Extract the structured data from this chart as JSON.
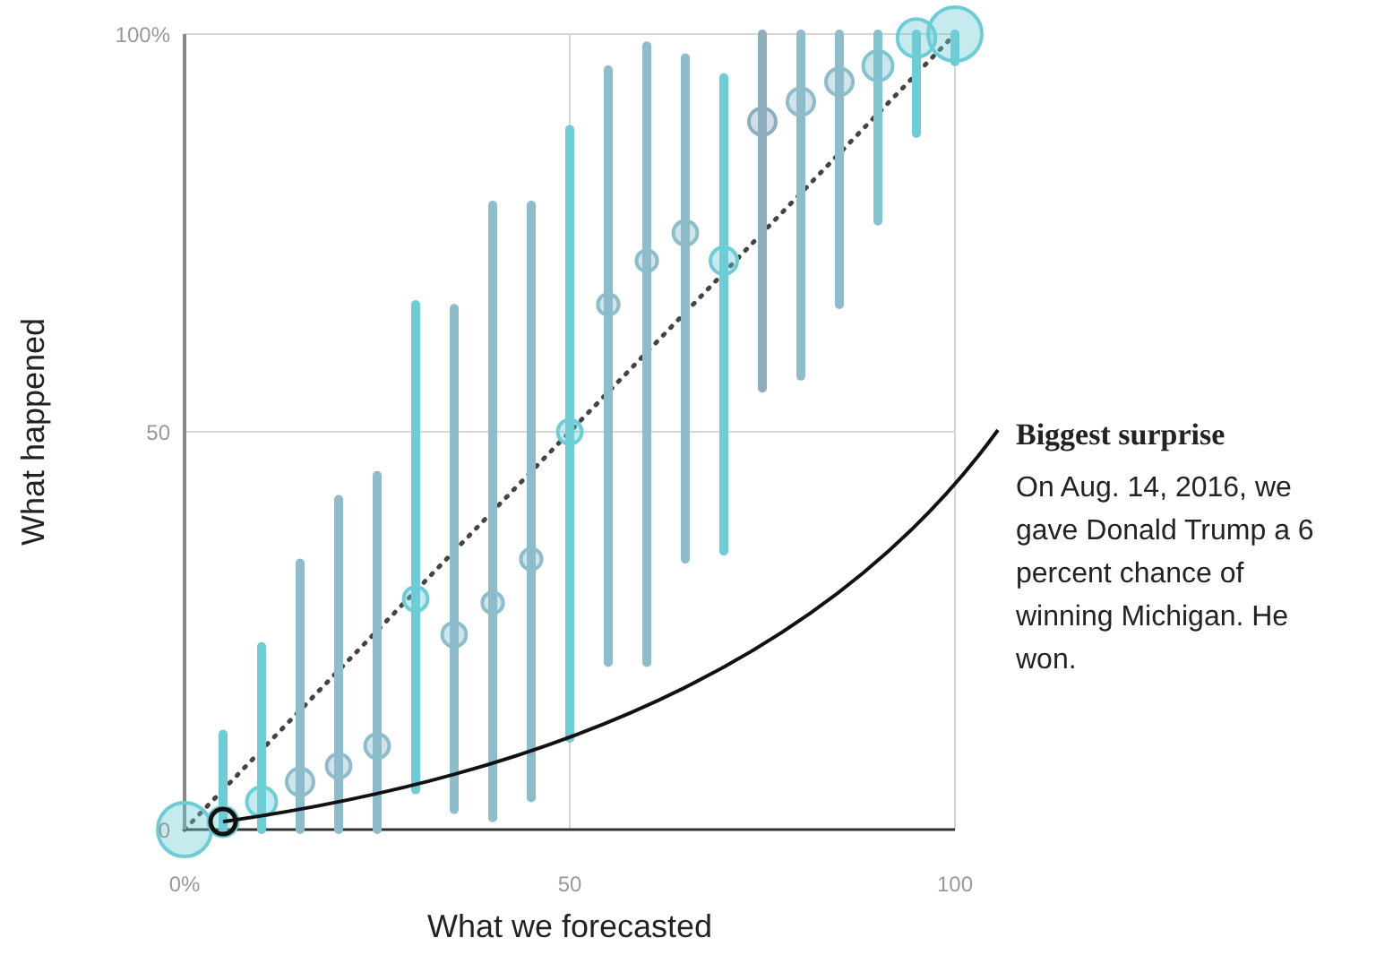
{
  "chart_data": {
    "type": "bubble",
    "xlabel": "What we forecasted",
    "ylabel": "What happened",
    "xlim": [
      0,
      100
    ],
    "ylim": [
      0,
      100
    ],
    "xticks": [
      {
        "value": 0,
        "label": "0%"
      },
      50,
      100
    ],
    "yticks": [
      0,
      50,
      {
        "value": 100,
        "label": "100%"
      }
    ],
    "grid": true,
    "series": [
      {
        "x": [
          0,
          5,
          10,
          15,
          20,
          25,
          30,
          35,
          40,
          45,
          50,
          55,
          60,
          65,
          70,
          75,
          80,
          85,
          90,
          95,
          100
        ],
        "values": [
          0,
          1,
          3.5,
          6,
          8,
          10.5,
          29,
          24.5,
          28.5,
          34,
          50,
          66,
          71.5,
          75,
          71.5,
          89,
          91.5,
          94,
          96,
          99.5,
          100
        ],
        "sizes": [
          1,
          0.3,
          0.3,
          0.25,
          0.2,
          0.2,
          0.2,
          0.2,
          0.15,
          0.15,
          0.2,
          0.15,
          0.15,
          0.2,
          0.25,
          0.25,
          0.25,
          0.25,
          0.3,
          0.5,
          1
        ],
        "errors": [
          null,
          [
            0,
            12
          ],
          [
            0,
            23
          ],
          [
            0,
            33.5
          ],
          [
            0,
            41.5
          ],
          [
            0,
            44.5
          ],
          [
            5,
            66
          ],
          [
            2.5,
            65.5
          ],
          [
            1.5,
            78.5
          ],
          [
            4,
            78.5
          ],
          [
            11.5,
            88
          ],
          [
            21,
            95.5
          ],
          [
            21,
            98.5
          ],
          [
            34,
            97
          ],
          [
            35,
            94.5
          ],
          [
            55.5,
            100
          ],
          [
            57,
            100
          ],
          [
            66,
            100
          ],
          [
            76.5,
            100
          ],
          [
            87.5,
            100
          ],
          [
            96.5,
            100
          ]
        ],
        "colors": [
          "#6dcdd6",
          "#6dcdd6",
          "#6dcdd6",
          "#8dbccb",
          "#8dbccb",
          "#8dbccb",
          "#6dcdd6",
          "#8dbccb",
          "#8dbccb",
          "#8dbccb",
          "#6dcdd6",
          "#8dbccb",
          "#8dbccb",
          "#8dbccb",
          "#6dcdd6",
          "#8daebf",
          "#8dbccb",
          "#8dbccb",
          "#7fc4cf",
          "#6dcdd6",
          "#6dcdd6"
        ]
      },
      {
        "type": "line",
        "x": [
          0,
          100
        ],
        "values": [
          0,
          100
        ],
        "color": "#444444",
        "line_style": "dotted",
        "marker": "none"
      }
    ],
    "annotations": [
      {
        "text": "Biggest surprise",
        "x": 5,
        "y": 1
      },
      "On Aug. 14, 2016, we gave Donald Trump a 6 percent chance of winning Michigan. He won."
    ]
  }
}
